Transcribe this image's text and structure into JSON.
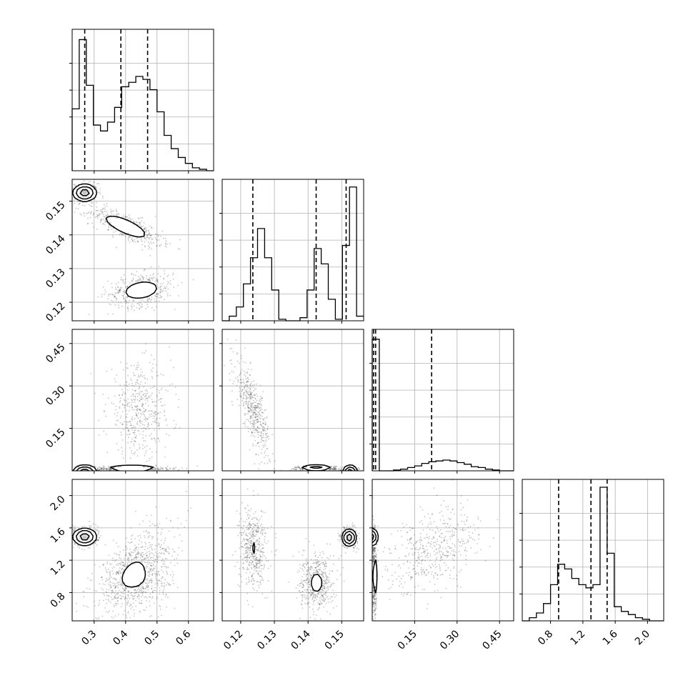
{
  "chart_data": {
    "type": "corner",
    "grid": true,
    "colors": {
      "axes": "#000000",
      "grid": "#b0b0b0",
      "points": "#333333",
      "density_dark": "#000000",
      "density_light": "#ffffff"
    },
    "parameters": [
      {
        "ticks": [
          0.3,
          0.4,
          0.5,
          0.6
        ],
        "tick_labels": [
          "0.3",
          "0.4",
          "0.5",
          "0.6"
        ],
        "range": [
          0.23,
          0.68
        ]
      },
      {
        "ticks": [
          0.12,
          0.13,
          0.14,
          0.15
        ],
        "tick_labels": [
          "0.12",
          "0.13",
          "0.14",
          "0.15"
        ],
        "range": [
          0.1145,
          0.1565
        ]
      },
      {
        "ticks": [
          0.15,
          0.3,
          0.45
        ],
        "tick_labels": [
          "0.15",
          "0.30",
          "0.45"
        ],
        "range": [
          0.0,
          0.5
        ]
      },
      {
        "ticks": [
          0.8,
          1.2,
          1.6,
          2.0
        ],
        "tick_labels": [
          "0.8",
          "1.2",
          "1.6",
          "2.0"
        ],
        "range": [
          0.45,
          2.2
        ]
      }
    ],
    "diagonal": [
      {
        "bin_edges": [
          0.23,
          0.2525,
          0.275,
          0.2975,
          0.32,
          0.3425,
          0.365,
          0.3875,
          0.41,
          0.4325,
          0.455,
          0.4775,
          0.5,
          0.5225,
          0.545,
          0.5675,
          0.59,
          0.6125,
          0.635,
          0.6575,
          0.68
        ],
        "counts": [
          0.42,
          0.89,
          0.58,
          0.31,
          0.27,
          0.33,
          0.43,
          0.57,
          0.6,
          0.64,
          0.62,
          0.55,
          0.4,
          0.24,
          0.15,
          0.09,
          0.05,
          0.02,
          0.01,
          0.0
        ],
        "max": 0.96,
        "quantiles": [
          0.27,
          0.385,
          0.47
        ]
      },
      {
        "bin_edges": [
          0.1145,
          0.1166,
          0.1187,
          0.1208,
          0.1229,
          0.125,
          0.1271,
          0.1292,
          0.1313,
          0.1334,
          0.1355,
          0.1376,
          0.1397,
          0.1418,
          0.1439,
          0.146,
          0.1481,
          0.1502,
          0.1523,
          0.1544,
          0.1565
        ],
        "counts": [
          0.0,
          0.03,
          0.09,
          0.24,
          0.41,
          0.6,
          0.41,
          0.2,
          0.01,
          0.0,
          0.0,
          0.02,
          0.2,
          0.47,
          0.37,
          0.14,
          0.01,
          0.49,
          0.87,
          0.03
        ],
        "max": 0.92,
        "quantiles": [
          0.1236,
          0.1424,
          0.1513
        ]
      },
      {
        "bin_edges": [
          0.0,
          0.025,
          0.05,
          0.075,
          0.1,
          0.125,
          0.15,
          0.175,
          0.2,
          0.225,
          0.25,
          0.275,
          0.3,
          0.325,
          0.35,
          0.375,
          0.4,
          0.425,
          0.45,
          0.475,
          0.5
        ],
        "counts": [
          0.8,
          0.0,
          0.0,
          0.005,
          0.01,
          0.02,
          0.03,
          0.045,
          0.055,
          0.06,
          0.065,
          0.06,
          0.05,
          0.04,
          0.025,
          0.02,
          0.01,
          0.005,
          0.0,
          0.0
        ],
        "max": 0.86,
        "quantiles": [
          0.005,
          0.012,
          0.21
        ]
      },
      {
        "bin_edges": [
          0.45,
          0.5375,
          0.625,
          0.7125,
          0.8,
          0.8875,
          0.975,
          1.0625,
          1.15,
          1.2375,
          1.325,
          1.4125,
          1.5,
          1.5875,
          1.675,
          1.7625,
          1.85,
          1.9375,
          2.025,
          2.1125,
          2.2
        ],
        "counts": [
          0.0,
          0.02,
          0.05,
          0.11,
          0.23,
          0.36,
          0.33,
          0.27,
          0.23,
          0.21,
          0.23,
          0.85,
          0.43,
          0.09,
          0.06,
          0.04,
          0.02,
          0.01,
          0.0,
          0.0
        ],
        "max": 0.9,
        "quantiles": [
          0.9,
          1.3,
          1.5
        ]
      }
    ],
    "modes": {
      "0-1": [
        {
          "x": 0.27,
          "y": 0.1525,
          "sx": 0.018,
          "sy": 0.0012,
          "rho": 0.0,
          "weight": 0.35
        },
        {
          "x": 0.4,
          "y": 0.1425,
          "sx": 0.05,
          "sy": 0.0025,
          "rho": -0.75,
          "weight": 0.33
        },
        {
          "x": 0.45,
          "y": 0.1236,
          "sx": 0.045,
          "sy": 0.0022,
          "rho": 0.25,
          "weight": 0.32
        }
      ],
      "0-2": [
        {
          "x": 0.27,
          "y": 0.005,
          "sx": 0.018,
          "sy": 0.004,
          "rho": 0.0,
          "weight": 0.35
        },
        {
          "x": 0.42,
          "y": 0.007,
          "sx": 0.05,
          "sy": 0.004,
          "rho": 0.0,
          "weight": 0.33
        },
        {
          "x": 0.445,
          "y": 0.21,
          "sx": 0.045,
          "sy": 0.07,
          "rho": 0.0,
          "weight": 0.32
        }
      ],
      "0-3": [
        {
          "x": 0.27,
          "y": 1.49,
          "sx": 0.018,
          "sy": 0.05,
          "rho": 0.0,
          "weight": 0.35
        },
        {
          "x": 0.42,
          "y": 1.1,
          "sx": 0.055,
          "sy": 0.26,
          "rho": 0.65,
          "weight": 0.33
        },
        {
          "x": 0.445,
          "y": 0.95,
          "sx": 0.05,
          "sy": 0.18,
          "rho": 0.1,
          "weight": 0.32
        }
      ],
      "1-2": [
        {
          "x": 0.1236,
          "y": 0.22,
          "sx": 0.0022,
          "sy": 0.07,
          "rho": -0.75,
          "weight": 0.32
        },
        {
          "x": 0.1424,
          "y": 0.008,
          "sx": 0.0025,
          "sy": 0.004,
          "rho": 0.0,
          "weight": 0.33
        },
        {
          "x": 0.1525,
          "y": 0.005,
          "sx": 0.001,
          "sy": 0.004,
          "rho": 0.0,
          "weight": 0.35
        }
      ],
      "1-3": [
        {
          "x": 0.1238,
          "y": 1.35,
          "sx": 0.0018,
          "sy": 0.22,
          "rho": 0.0,
          "weight": 0.32
        },
        {
          "x": 0.1425,
          "y": 0.92,
          "sx": 0.0022,
          "sy": 0.15,
          "rho": 0.0,
          "weight": 0.33
        },
        {
          "x": 0.1522,
          "y": 1.48,
          "sx": 0.001,
          "sy": 0.05,
          "rho": 0.0,
          "weight": 0.35
        }
      ],
      "2-3": [
        {
          "x": 0.005,
          "y": 1.49,
          "sx": 0.004,
          "sy": 0.05,
          "rho": 0.0,
          "weight": 0.35
        },
        {
          "x": 0.007,
          "y": 1.0,
          "sx": 0.004,
          "sy": 0.22,
          "rho": 0.0,
          "weight": 0.33
        },
        {
          "x": 0.22,
          "y": 1.35,
          "sx": 0.07,
          "sy": 0.22,
          "rho": 0.35,
          "weight": 0.32
        }
      ]
    }
  }
}
